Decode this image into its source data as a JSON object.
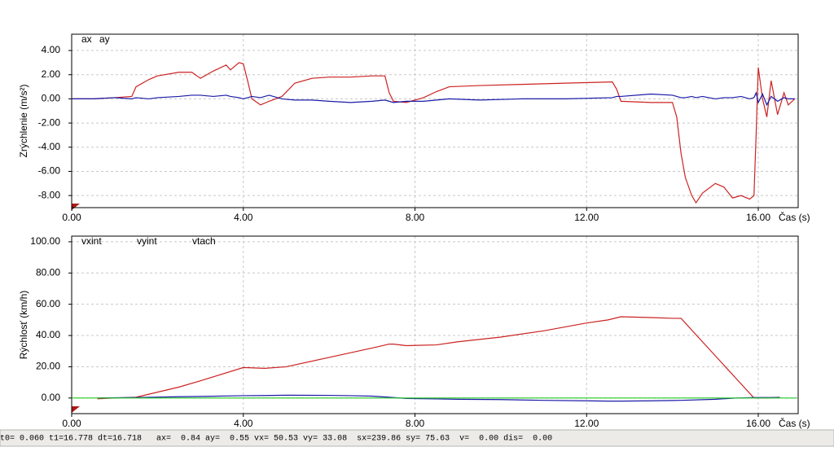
{
  "chart_data": [
    {
      "type": "line",
      "y_label": "Zrýchlenie (m/s²)",
      "x_label": "Čas (s)",
      "x": [
        0,
        0.5,
        1.0,
        1.4,
        1.5,
        1.8,
        2.0,
        2.5,
        2.8,
        3.0,
        3.3,
        3.6,
        3.7,
        3.9,
        4.0,
        4.1,
        4.2,
        4.4,
        4.6,
        4.9,
        5.2,
        5.6,
        6.0,
        6.5,
        7.0,
        7.3,
        7.4,
        7.5,
        7.8,
        8.2,
        8.5,
        8.8,
        9.5,
        10.5,
        11.5,
        12.6,
        12.7,
        12.8,
        13.5,
        14.0,
        14.1,
        14.2,
        14.3,
        14.45,
        14.55,
        14.7,
        15.0,
        15.2,
        15.4,
        15.6,
        15.8,
        15.9,
        15.95,
        16.0,
        16.1,
        16.2,
        16.3,
        16.45,
        16.6,
        16.7,
        16.85
      ],
      "series": [
        {
          "name": "ax",
          "color": "#cc2222",
          "values": [
            0,
            0,
            0.1,
            0.2,
            1.0,
            1.6,
            1.9,
            2.2,
            2.2,
            1.7,
            2.3,
            2.8,
            2.4,
            3.0,
            2.9,
            1.5,
            0,
            -0.5,
            -0.2,
            0.2,
            1.3,
            1.7,
            1.8,
            1.8,
            1.9,
            1.9,
            0.5,
            -0.2,
            -0.3,
            0.1,
            0.6,
            1.0,
            1.1,
            1.2,
            1.3,
            1.4,
            0.8,
            -0.2,
            -0.3,
            -0.3,
            -1.5,
            -4.5,
            -6.5,
            -8.0,
            -8.6,
            -7.8,
            -7.0,
            -7.3,
            -8.2,
            -8.0,
            -8.3,
            -8.0,
            -3.0,
            2.6,
            0.0,
            -1.5,
            1.5,
            -1.3,
            0.5,
            -0.5,
            0.0
          ]
        },
        {
          "name": "ay",
          "color": "#1a1aa8",
          "values": [
            0,
            0,
            0.1,
            0,
            0.1,
            0,
            0.1,
            0.2,
            0.3,
            0.3,
            0.2,
            0.3,
            0.2,
            0.1,
            0,
            0.1,
            0.2,
            0.1,
            0.3,
            0,
            -0.1,
            -0.1,
            -0.2,
            -0.3,
            -0.2,
            -0.1,
            -0.2,
            -0.3,
            -0.2,
            -0.2,
            -0.1,
            0,
            -0.1,
            0,
            0,
            0.1,
            0.2,
            0.2,
            0.4,
            0.3,
            0.2,
            0.1,
            0.1,
            0.2,
            0.1,
            0.2,
            0,
            0.1,
            0.1,
            0.2,
            0,
            0.1,
            0.5,
            -0.3,
            0.4,
            -0.5,
            0.2,
            -0.2,
            0.1,
            0,
            0
          ]
        }
      ],
      "xlim": [
        0,
        16.93
      ],
      "ylim": [
        -9.0,
        5.35
      ],
      "xticks": [
        {
          "value": 0,
          "label": "0.00"
        },
        {
          "value": 4,
          "label": "4.00"
        },
        {
          "value": 8,
          "label": "8.00"
        },
        {
          "value": 12,
          "label": "12.00"
        },
        {
          "value": 16,
          "label": "16.00"
        }
      ],
      "yticks": [
        {
          "value": -8,
          "label": "-8.00"
        },
        {
          "value": -6,
          "label": "-6.00"
        },
        {
          "value": -4,
          "label": "-4.00"
        },
        {
          "value": -2,
          "label": "-2.00"
        },
        {
          "value": 0,
          "label": "0.00"
        },
        {
          "value": 2,
          "label": "2.00"
        },
        {
          "value": 4,
          "label": "4.00"
        }
      ],
      "grid": true
    },
    {
      "type": "line",
      "y_label": "Rýchlosť (km/h)",
      "x_label": "Čas (s)",
      "x": [
        0,
        0.6,
        1.0,
        1.5,
        2.5,
        3.0,
        4.0,
        4.5,
        5.0,
        6.0,
        6.5,
        7.0,
        7.4,
        7.5,
        7.8,
        8.5,
        9.0,
        10.0,
        11.0,
        12.0,
        12.5,
        12.8,
        13.5,
        14.0,
        14.2,
        15.0,
        15.5,
        15.9,
        16.2,
        16.5,
        16.9
      ],
      "series": [
        {
          "name": "vxint",
          "color": "#cc2222",
          "values": [
            null,
            -0.5,
            0,
            0.5,
            7,
            11,
            19.5,
            19,
            20,
            26,
            29,
            32,
            34.5,
            34.5,
            33.5,
            34,
            36,
            39,
            43,
            48,
            50,
            52,
            51.5,
            51,
            51,
            27,
            12,
            0,
            0,
            0.5,
            null
          ]
        },
        {
          "name": "vyint",
          "color": "#1a1aa8",
          "values": [
            null,
            0,
            0.2,
            0.3,
            0.8,
            1.0,
            1.5,
            1.6,
            1.8,
            1.7,
            1.5,
            1.2,
            0.5,
            0.3,
            -0.3,
            -0.6,
            -0.8,
            -1.0,
            -1.5,
            -1.8,
            -2.0,
            -2.0,
            -1.8,
            -1.6,
            -1.5,
            -0.8,
            0,
            0.3,
            0.3,
            0.3,
            null
          ]
        },
        {
          "name": "vtach",
          "color": "#22cc22",
          "values": [
            0,
            0,
            0,
            0,
            0,
            0,
            0,
            0,
            0,
            0,
            0,
            0,
            0,
            0,
            0,
            0,
            0,
            0,
            0,
            0,
            0,
            0,
            0,
            0,
            0,
            0,
            0,
            0,
            0,
            0,
            0
          ]
        }
      ],
      "xlim": [
        0,
        16.93
      ],
      "ylim": [
        -10.0,
        103.6
      ],
      "xticks": [
        {
          "value": 0,
          "label": "0.00"
        },
        {
          "value": 4,
          "label": "4.00"
        },
        {
          "value": 8,
          "label": "8.00"
        },
        {
          "value": 12,
          "label": "12.00"
        },
        {
          "value": 16,
          "label": "16.00"
        }
      ],
      "yticks": [
        {
          "value": 0,
          "label": "0.00"
        },
        {
          "value": 20,
          "label": "20.00"
        },
        {
          "value": 40,
          "label": "40.00"
        },
        {
          "value": 60,
          "label": "60.00"
        },
        {
          "value": 80,
          "label": "80.00"
        },
        {
          "value": 100,
          "label": "100.00"
        }
      ],
      "grid": true
    }
  ],
  "status_bar": "t0= 0.060 t1=16.778 dt=16.718   ax=  0.84 ay=  0.55 vx= 50.53 vy= 33.08  sx=239.86 sy= 75.63  v=  0.00 dis=  0.00"
}
